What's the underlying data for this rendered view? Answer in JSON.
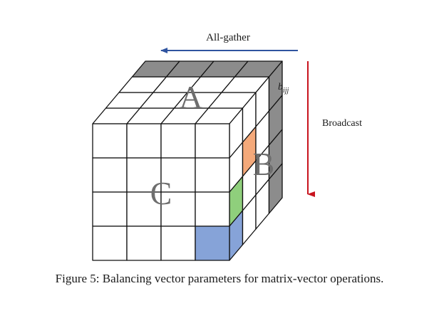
{
  "diagram": {
    "arrows": {
      "all_gather": {
        "label": "All-gather",
        "color": "#2f54a0"
      },
      "broadcast": {
        "label": "Broadcast",
        "color": "#c8141e"
      }
    },
    "cube": {
      "grid_size": 4,
      "face_labels": {
        "top": "A",
        "right": "B",
        "front": "C"
      },
      "element_label_base": "b",
      "element_label_sub": "ijj",
      "colors": {
        "edge": "#111111",
        "face": "#ffffff",
        "shaded_gray": "#8c8c8c",
        "orange": "#f4a97a",
        "green": "#8fcf7c",
        "blue": "#86a3d8",
        "letter": "#6e6e6e"
      },
      "highlighted_cells": [
        {
          "face": "right",
          "col": 1,
          "row": 1,
          "color": "orange"
        },
        {
          "face": "right",
          "col": 0,
          "row": 2,
          "color": "green"
        },
        {
          "face": "front",
          "col": 3,
          "row": 3,
          "color": "blue"
        },
        {
          "face": "right",
          "col": 0,
          "row": 3,
          "color": "blue"
        }
      ],
      "shaded_strips": [
        "top-back-row",
        "right-back-column"
      ]
    }
  },
  "caption": "Figure 5: Balancing vector parameters for matrix-vector operations."
}
